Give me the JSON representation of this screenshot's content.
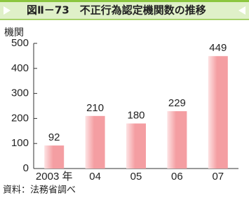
{
  "chart_data": {
    "type": "bar",
    "title": "図Ⅱ－73　不正行為認定機関数の推移",
    "y_label": "機関",
    "categories": [
      "2003 年",
      "04",
      "05",
      "06",
      "07"
    ],
    "values": [
      92,
      210,
      180,
      229,
      449
    ],
    "color": "#f49ea2",
    "ylim": [
      0,
      500
    ],
    "yticks": [
      0,
      100,
      200,
      300,
      400,
      500
    ],
    "source": "資料：法務省調べ"
  }
}
